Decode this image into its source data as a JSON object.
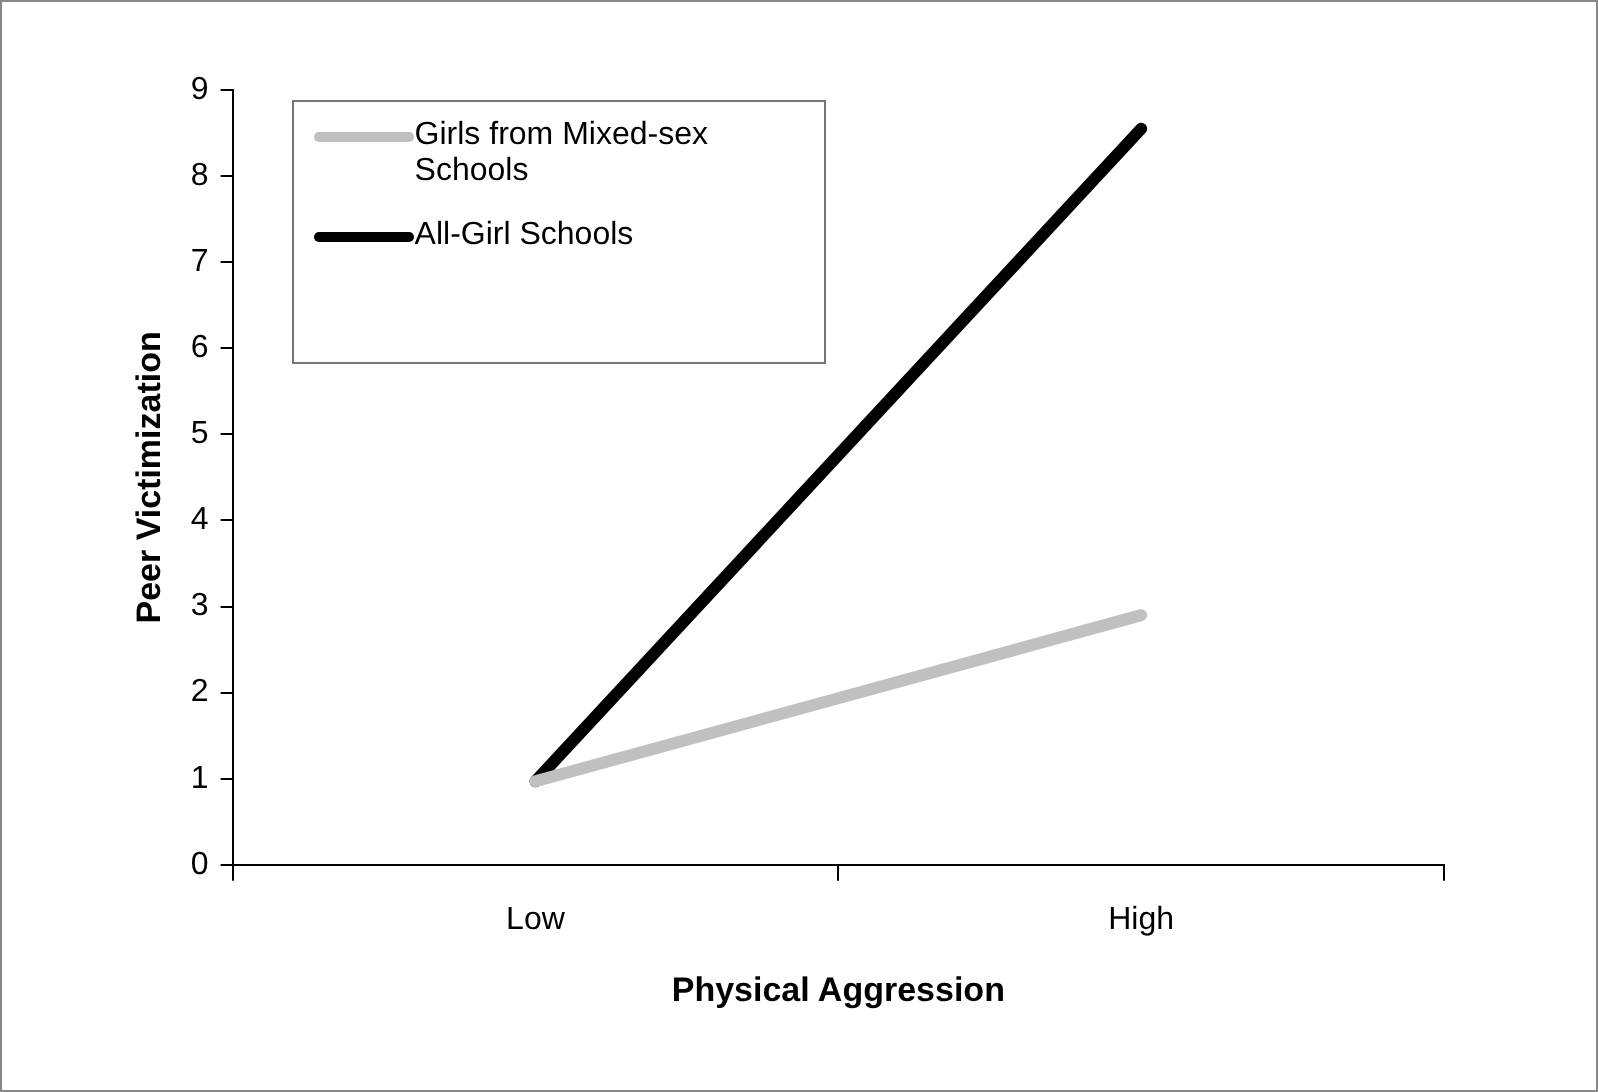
{
  "chart_data": {
    "type": "line",
    "xlabel": "Physical Aggression",
    "ylabel": "Peer Victimization",
    "categories": [
      "Low",
      "High"
    ],
    "series": [
      {
        "name": "Girls from Mixed-sex Schools",
        "color": "#c0c0c0",
        "values": [
          0.97,
          2.9
        ]
      },
      {
        "name": "All-Girl Schools",
        "color": "#000000",
        "values": [
          0.97,
          8.55
        ]
      }
    ],
    "ylim": [
      0,
      9
    ],
    "yticks": [
      0,
      1,
      2,
      3,
      4,
      5,
      6,
      7,
      8,
      9
    ],
    "grid": false,
    "legend": "top left",
    "marker": "none",
    "line_style": "solid"
  }
}
